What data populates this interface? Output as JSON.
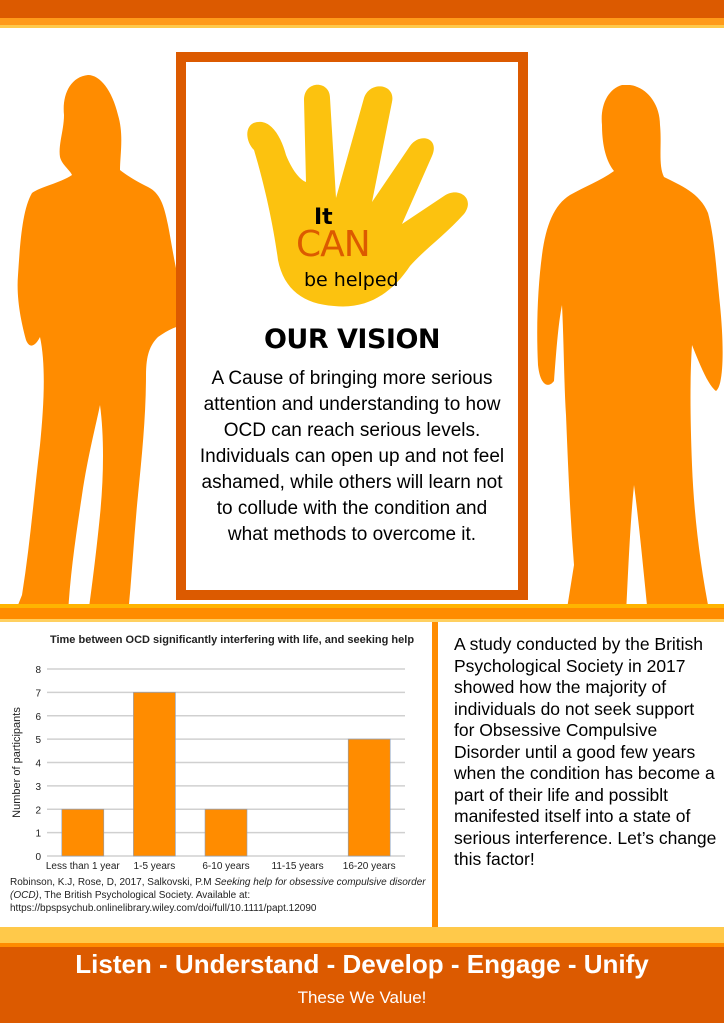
{
  "colors": {
    "dark_orange": "#dc5a00",
    "orange": "#ff8c00",
    "yellow": "#fcc20f"
  },
  "logo": {
    "line1": "It",
    "line2": "CAN",
    "line3": "be helped",
    "icon": "hand-icon"
  },
  "vision": {
    "title": "OUR VISION",
    "text": "A Cause of bringing more serious attention and understanding to how OCD can reach serious levels. Individuals can open up and not feel ashamed, while others will learn not to collude with the condition and what methods to overcome it."
  },
  "chart_data": {
    "type": "bar",
    "title": "Time between OCD significantly interfering with life, and seeking help",
    "xlabel": "",
    "ylabel": "Number of participants",
    "categories": [
      "Less than 1 year",
      "1-5 years",
      "6-10 years",
      "11-15 years",
      "16-20 years"
    ],
    "values": [
      2,
      7,
      2,
      0,
      5
    ],
    "ylim": [
      0,
      8
    ],
    "yticks": [
      "0",
      "1",
      "2",
      "3",
      "4",
      "5",
      "6",
      "7",
      "8"
    ],
    "grid": true,
    "bar_color": "#ff8c00"
  },
  "citation": {
    "authors": "Robinson, K.J, Rose, D,  2017, Salkovski, P.M ",
    "title": "Seeking help for obsessive compulsive disorder (OCD)",
    "rest": ", The British Psychological Society. Available at: https://bpspsychub.onlinelibrary.wiley.com/doi/full/10.1111/papt.12090"
  },
  "study_text": "A study conducted by the British Psychological Society in 2017 showed how the majority of individuals do not seek support for Obsessive Compulsive Disorder until a good few years when the condition has become a part of their life and possiblt manifested itself into a state of serious interference. Let’s change this factor!",
  "footer": {
    "values": "Listen - Understand - Develop - Engage - Unify",
    "tagline": "These We Value!"
  }
}
